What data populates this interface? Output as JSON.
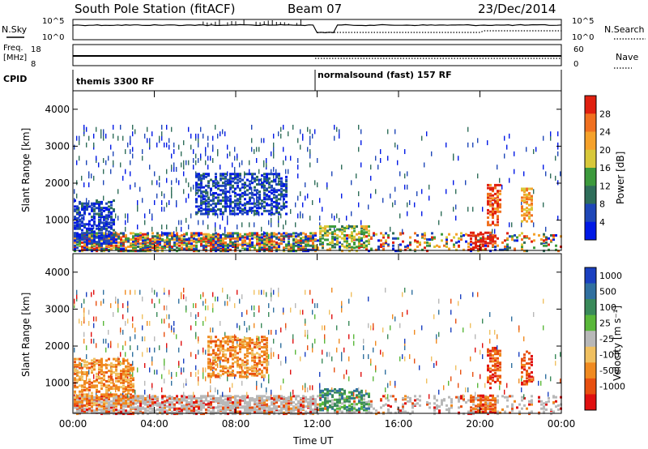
{
  "header": {
    "station": "South Pole Station (fitACF)",
    "beam": "Beam 07",
    "date": "23/Dec/2014"
  },
  "status_panel": {
    "nsky_label": "N.Sky",
    "nsearch_label": "N.Search",
    "nsky_ticks": [
      "10^5",
      "10^0"
    ],
    "nsearch_ticks": [
      "10^5",
      "10^0"
    ],
    "freq_label": [
      "Freq.",
      "[MHz]"
    ],
    "freq_ticks": [
      "18",
      "8"
    ],
    "nave_label": "Nave",
    "nave_ticks": [
      "60",
      "0"
    ],
    "cpid_label": "CPID",
    "cpid_modes": [
      "themis 3300 RF",
      "normalsound (fast) 157 RF"
    ],
    "mode_change_hour": 11.9
  },
  "chart_data": [
    {
      "type": "heatmap",
      "name": "power",
      "ylabel": "Slant Range [km]",
      "yticks": [
        "1000",
        "2000",
        "3000",
        "4000"
      ],
      "ylim": [
        180,
        4500
      ],
      "xlim": [
        0,
        24
      ],
      "colorbar_label": "Power [dB]",
      "colorbar_ticks": [
        "4",
        "8",
        "12",
        "16",
        "20",
        "24",
        "28"
      ],
      "colorbar_range": [
        0,
        30
      ],
      "colors": [
        "#0019e6",
        "#1f47b8",
        "#2f6e5a",
        "#3c9a3c",
        "#d8c83a",
        "#f5a12a",
        "#f07020",
        "#e02010"
      ],
      "features": [
        {
          "time": [
            0.0,
            2.0
          ],
          "range": [
            400,
            1600
          ],
          "level": 0.15
        },
        {
          "time": [
            6.0,
            10.5
          ],
          "range": [
            1200,
            2300
          ],
          "level": 0.18
        },
        {
          "time": [
            12.0,
            14.5
          ],
          "range": [
            300,
            900
          ],
          "level": 0.5
        },
        {
          "time": [
            19.5,
            20.8
          ],
          "range": [
            250,
            700
          ],
          "level": 0.95
        },
        {
          "time": [
            20.3,
            21.0
          ],
          "range": [
            900,
            2000
          ],
          "level": 0.85
        },
        {
          "time": [
            22.0,
            22.6
          ],
          "range": [
            1000,
            1900
          ],
          "level": 0.7
        }
      ]
    },
    {
      "type": "heatmap",
      "name": "velocity",
      "ylabel": "Slant Range [km]",
      "yticks": [
        "1000",
        "2000",
        "3000",
        "4000"
      ],
      "ylim": [
        180,
        4500
      ],
      "xlim": [
        0,
        24
      ],
      "xticks": [
        "00:00",
        "04:00",
        "08:00",
        "12:00",
        "16:00",
        "20:00",
        "00:00"
      ],
      "xlabel": "Time UT",
      "colorbar_label": "Velocity [m s⁻¹]",
      "colorbar_ticks": [
        "1000",
        "500",
        "100",
        "25",
        "-25",
        "-100",
        "-500",
        "-1000"
      ],
      "colors": [
        "#1a40c0",
        "#3070a0",
        "#3a8a5a",
        "#5ab83a",
        "#b8b8b8",
        "#f0c060",
        "#f08a20",
        "#e85010",
        "#e01010"
      ],
      "features": [
        {
          "time": [
            0.0,
            3.0
          ],
          "range": [
            400,
            1700
          ],
          "velocity": -300
        },
        {
          "time": [
            6.5,
            9.5
          ],
          "range": [
            1200,
            2300
          ],
          "velocity": -200
        },
        {
          "time": [
            12.0,
            14.5
          ],
          "range": [
            300,
            900
          ],
          "velocity": 300
        },
        {
          "time": [
            19.5,
            20.8
          ],
          "range": [
            250,
            700
          ],
          "velocity": -600
        },
        {
          "time": [
            20.3,
            21.0
          ],
          "range": [
            900,
            2000
          ],
          "velocity": -700
        },
        {
          "time": [
            22.0,
            22.6
          ],
          "range": [
            1000,
            1900
          ],
          "velocity": -700
        }
      ]
    }
  ]
}
